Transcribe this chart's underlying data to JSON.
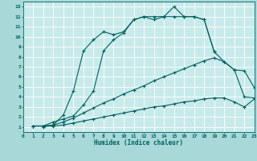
{
  "background_color": "#a8d8d8",
  "plot_bg_color": "#c8eaea",
  "line_color": "#006060",
  "grid_color": "#ffffff",
  "xlabel": "Humidex (Indice chaleur)",
  "xlim": [
    0,
    23
  ],
  "ylim": [
    0.5,
    13.5
  ],
  "xticks": [
    0,
    1,
    2,
    3,
    4,
    5,
    6,
    7,
    8,
    9,
    10,
    11,
    12,
    13,
    14,
    15,
    16,
    17,
    18,
    19,
    20,
    21,
    22,
    23
  ],
  "yticks": [
    1,
    2,
    3,
    4,
    5,
    6,
    7,
    8,
    9,
    10,
    11,
    12,
    13
  ],
  "series": [
    {
      "x": [
        1,
        2,
        2,
        3,
        4,
        5,
        6,
        7,
        8,
        9,
        10,
        11,
        12,
        13,
        14,
        15,
        16,
        17,
        18,
        19
      ],
      "y": [
        1.1,
        1.1,
        1.0,
        1.2,
        2.2,
        4.6,
        8.6,
        9.7,
        10.5,
        10.2,
        10.5,
        11.7,
        12.0,
        12.0,
        12.0,
        13.0,
        12.0,
        12.0,
        11.7,
        8.5
      ]
    },
    {
      "x": [
        1,
        2,
        3,
        4,
        5,
        6,
        7,
        8,
        9,
        10,
        11,
        12,
        13,
        14,
        15,
        16,
        17,
        18,
        19,
        20,
        21,
        22,
        23
      ],
      "y": [
        1.1,
        1.1,
        1.5,
        1.8,
        2.1,
        3.2,
        4.6,
        8.6,
        9.7,
        10.4,
        11.7,
        12.0,
        11.7,
        12.0,
        12.0,
        12.0,
        12.0,
        11.7,
        8.5,
        7.5,
        6.7,
        6.6,
        4.9
      ]
    },
    {
      "x": [
        1,
        2,
        3,
        4,
        5,
        6,
        7,
        8,
        9,
        10,
        11,
        12,
        13,
        14,
        15,
        16,
        17,
        18,
        19,
        20,
        21,
        22,
        23
      ],
      "y": [
        1.1,
        1.1,
        1.2,
        1.5,
        1.9,
        2.4,
        2.9,
        3.4,
        3.8,
        4.3,
        4.7,
        5.1,
        5.6,
        6.0,
        6.4,
        6.8,
        7.2,
        7.6,
        7.9,
        7.5,
        6.7,
        4.0,
        3.9
      ]
    },
    {
      "x": [
        1,
        2,
        3,
        4,
        5,
        6,
        7,
        8,
        9,
        10,
        11,
        12,
        13,
        14,
        15,
        16,
        17,
        18,
        19,
        20,
        21,
        22,
        23
      ],
      "y": [
        1.1,
        1.1,
        1.1,
        1.2,
        1.4,
        1.6,
        1.8,
        2.0,
        2.2,
        2.4,
        2.6,
        2.8,
        3.0,
        3.1,
        3.3,
        3.5,
        3.6,
        3.8,
        3.9,
        3.9,
        3.5,
        3.0,
        3.8
      ]
    }
  ]
}
